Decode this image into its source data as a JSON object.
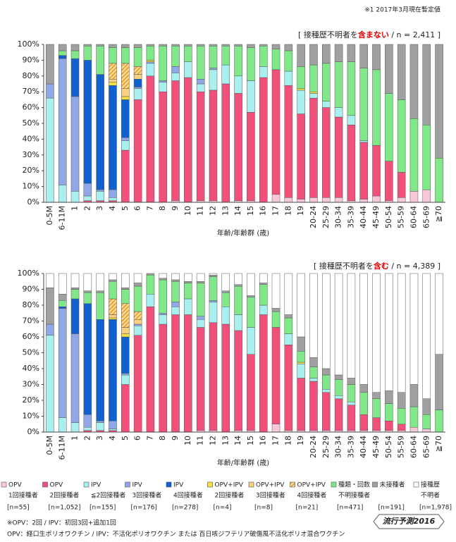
{
  "note": "※1  2017年3月現在暫定値",
  "chart_data": [
    {
      "type": "bar",
      "stacked": true,
      "title_parts": [
        "[ 接種歴不明者を",
        "含まない",
        " / n = 2,411 ]"
      ],
      "xlabel": "年齢/年齢群 (歳)",
      "categories": [
        "0-5M",
        "6-11M",
        "1",
        "2",
        "3",
        "4",
        "5",
        "6",
        "7",
        "8",
        "9",
        "10",
        "11",
        "12",
        "13",
        "14",
        "15",
        "16",
        "17",
        "18",
        "19",
        "20-24",
        "25-29",
        "30-34",
        "35-39",
        "40-44",
        "45-49",
        "50-54",
        "55-59",
        "60-64",
        "65-69",
        "≧70"
      ],
      "ylim": [
        0,
        100
      ],
      "yticks": [
        {
          "value": 0,
          "label": "0%"
        },
        {
          "value": 10,
          "label": "10%"
        },
        {
          "value": 20,
          "label": "20%"
        },
        {
          "value": 30,
          "label": "30%"
        },
        {
          "value": 40,
          "label": "40%"
        },
        {
          "value": 50,
          "label": "50%"
        },
        {
          "value": 60,
          "label": "60%"
        },
        {
          "value": 70,
          "label": "70%"
        },
        {
          "value": 80,
          "label": "80%"
        },
        {
          "value": 90,
          "label": "90%"
        },
        {
          "value": 100,
          "label": "100%"
        }
      ],
      "series": [
        {
          "name": "OPV",
          "detail": "1回接種者",
          "n": "[n=55]",
          "color": "#f8c8d8",
          "values": [
            0,
            0,
            0,
            0,
            0,
            0,
            0,
            0,
            0,
            0,
            1,
            0,
            1,
            1,
            0,
            1,
            1,
            0,
            5,
            3,
            2,
            3,
            3,
            3,
            1,
            2,
            4,
            1,
            3,
            7,
            8,
            0
          ]
        },
        {
          "name": "OPV",
          "detail": "2回接種者",
          "n": "[n=1,052]",
          "color": "#f0507a",
          "values": [
            0,
            0,
            0,
            1,
            1,
            1,
            33,
            65,
            80,
            70,
            76,
            79,
            69,
            70,
            75,
            68,
            56,
            79,
            79,
            71,
            54,
            63,
            57,
            51,
            48,
            36,
            32,
            25,
            16,
            0,
            0,
            0
          ]
        },
        {
          "name": "IPV",
          "detail": "≦2回接種者",
          "n": "[n=155]",
          "color": "#a8f0f0",
          "values": [
            66,
            11,
            7,
            3,
            6,
            2,
            6,
            7,
            8,
            6,
            5,
            10,
            5,
            13,
            12,
            11,
            20,
            7,
            0,
            9,
            15,
            3,
            4,
            6,
            6,
            1,
            0,
            0,
            0,
            0,
            0,
            0
          ]
        },
        {
          "name": "IPV",
          "detail": "3回接種者",
          "n": "[n=176]",
          "color": "#90a8e8",
          "values": [
            9,
            80,
            60,
            8,
            1,
            5,
            2,
            1,
            1,
            1,
            4,
            0,
            3,
            1,
            0,
            0,
            0,
            0,
            0,
            0,
            0,
            0,
            0,
            0,
            0,
            0,
            0,
            0,
            0,
            0,
            0,
            0
          ]
        },
        {
          "name": "IPV",
          "detail": "4回接種者",
          "n": "[n=278]",
          "color": "#1060d0",
          "values": [
            0,
            2,
            24,
            78,
            73,
            66,
            24,
            5,
            0,
            0,
            0,
            0,
            0,
            0,
            0,
            0,
            0,
            0,
            0,
            0,
            0,
            0,
            0,
            0,
            0,
            0,
            0,
            0,
            0,
            0,
            0,
            0
          ]
        },
        {
          "name": "OPV+IPV",
          "detail": "2回接種者",
          "n": "[n=4]",
          "color": "#f8e040",
          "values": [
            0,
            0,
            0,
            0,
            0,
            2,
            2,
            0,
            1,
            0,
            0,
            0,
            0,
            0,
            0,
            0,
            0,
            0,
            0,
            0,
            1,
            1,
            0,
            0,
            0,
            0,
            0,
            0,
            0,
            0,
            0,
            0
          ]
        },
        {
          "name": "OPV+IPV",
          "detail": "3回接種者",
          "n": "[n=8]",
          "color": "#f8d080",
          "values": [
            0,
            0,
            0,
            0,
            0,
            2,
            5,
            3,
            0,
            0,
            0,
            0,
            0,
            0,
            0,
            0,
            0,
            0,
            0,
            0,
            0,
            0,
            0,
            0,
            0,
            0,
            0,
            0,
            0,
            0,
            0,
            0
          ]
        },
        {
          "name": "OPV+IPV",
          "detail": "4回接種者",
          "n": "[n=21]",
          "color": "#f0a030",
          "hatch": true,
          "values": [
            0,
            0,
            0,
            0,
            0,
            10,
            16,
            5,
            0,
            0,
            0,
            0,
            0,
            0,
            0,
            0,
            0,
            0,
            0,
            0,
            0,
            0,
            0,
            0,
            0,
            0,
            0,
            0,
            0,
            0,
            0,
            0
          ]
        },
        {
          "name": "種類・回数",
          "detail": "不明接種者",
          "n": "[n=471]",
          "color": "#80e888",
          "values": [
            0,
            3,
            5,
            9,
            18,
            10,
            10,
            12,
            9,
            22,
            13,
            10,
            21,
            14,
            12,
            19,
            21,
            13,
            13,
            13,
            14,
            17,
            24,
            29,
            34,
            46,
            48,
            43,
            46,
            46,
            41,
            28
          ]
        },
        {
          "name": "未接種者",
          "n": "[n=191]",
          "color": "#a0a0a0",
          "values": [
            25,
            4,
            4,
            1,
            1,
            2,
            2,
            2,
            1,
            1,
            1,
            1,
            1,
            1,
            1,
            1,
            2,
            1,
            3,
            4,
            14,
            13,
            12,
            11,
            11,
            15,
            16,
            31,
            35,
            47,
            51,
            72
          ]
        },
        {
          "name": "接種歴",
          "detail": "不明者",
          "n": "[n=1,978]",
          "color": "#ffffff",
          "values": [
            0,
            0,
            0,
            0,
            0,
            0,
            0,
            0,
            0,
            0,
            0,
            0,
            0,
            0,
            0,
            0,
            0,
            0,
            0,
            0,
            0,
            0,
            0,
            0,
            0,
            0,
            0,
            0,
            0,
            0,
            0,
            0
          ]
        }
      ]
    },
    {
      "type": "bar",
      "stacked": true,
      "title_parts": [
        "[ 接種歴不明者を",
        "含む",
        " / n = 4,389 ]"
      ],
      "xlabel": "年齢/年齢群 (歳)",
      "categories": [
        "0-5M",
        "6-11M",
        "1",
        "2",
        "3",
        "4",
        "5",
        "6",
        "7",
        "8",
        "9",
        "10",
        "11",
        "12",
        "13",
        "14",
        "15",
        "16",
        "17",
        "18",
        "19",
        "20-24",
        "25-29",
        "30-34",
        "35-39",
        "40-44",
        "45-49",
        "50-54",
        "55-59",
        "60-64",
        "65-69",
        "≧70"
      ],
      "ylim": [
        0,
        100
      ],
      "yticks": [
        {
          "value": 0,
          "label": "0%"
        },
        {
          "value": 10,
          "label": "10%"
        },
        {
          "value": 20,
          "label": "20%"
        },
        {
          "value": 30,
          "label": "30%"
        },
        {
          "value": 40,
          "label": "40%"
        },
        {
          "value": 50,
          "label": "50%"
        },
        {
          "value": 60,
          "label": "60%"
        },
        {
          "value": 70,
          "label": "70%"
        },
        {
          "value": 80,
          "label": "80%"
        },
        {
          "value": 90,
          "label": "90%"
        },
        {
          "value": 100,
          "label": "100%"
        }
      ],
      "series": [
        {
          "values": [
            0,
            0,
            0,
            0,
            0,
            0,
            0,
            0,
            0,
            0,
            0,
            0,
            1,
            1,
            0,
            1,
            1,
            0,
            5,
            1,
            1,
            1,
            1,
            1,
            1,
            1,
            1,
            1,
            1,
            3,
            2,
            0
          ]
        },
        {
          "values": [
            0,
            0,
            0,
            1,
            1,
            1,
            30,
            61,
            79,
            68,
            74,
            74,
            65,
            68,
            68,
            63,
            48,
            74,
            61,
            54,
            33,
            31,
            24,
            20,
            16,
            10,
            8,
            6,
            4,
            0,
            0,
            0
          ]
        },
        {
          "values": [
            61,
            9,
            6,
            2,
            5,
            1,
            6,
            6,
            8,
            6,
            5,
            10,
            5,
            13,
            11,
            10,
            17,
            6,
            0,
            7,
            9,
            2,
            2,
            2,
            2,
            0,
            0,
            0,
            0,
            0,
            0,
            0
          ]
        },
        {
          "values": [
            7,
            69,
            56,
            8,
            1,
            5,
            1,
            1,
            0,
            1,
            3,
            0,
            2,
            1,
            0,
            0,
            0,
            0,
            0,
            0,
            0,
            0,
            0,
            0,
            0,
            0,
            0,
            0,
            0,
            0,
            0,
            0
          ]
        },
        {
          "values": [
            0,
            1,
            22,
            70,
            64,
            64,
            23,
            0,
            0,
            0,
            0,
            0,
            0,
            0,
            0,
            0,
            0,
            0,
            0,
            0,
            0,
            0,
            0,
            0,
            0,
            0,
            0,
            0,
            0,
            0,
            0,
            0
          ]
        },
        {
          "values": [
            0,
            0,
            0,
            0,
            0,
            1,
            2,
            0,
            0,
            0,
            0,
            0,
            0,
            0,
            0,
            0,
            0,
            0,
            0,
            0,
            1,
            0,
            0,
            0,
            0,
            0,
            0,
            0,
            0,
            0,
            0,
            0
          ]
        },
        {
          "values": [
            0,
            0,
            0,
            0,
            0,
            2,
            4,
            3,
            0,
            0,
            0,
            0,
            0,
            0,
            0,
            0,
            0,
            0,
            0,
            0,
            0,
            0,
            0,
            0,
            0,
            0,
            0,
            0,
            0,
            0,
            0,
            0
          ]
        },
        {
          "values": [
            0,
            0,
            0,
            0,
            0,
            10,
            15,
            5,
            0,
            0,
            0,
            0,
            0,
            0,
            0,
            0,
            0,
            0,
            0,
            0,
            0,
            0,
            0,
            0,
            0,
            0,
            0,
            0,
            0,
            0,
            0,
            0
          ]
        },
        {
          "values": [
            0,
            4,
            6,
            7,
            17,
            11,
            9,
            16,
            12,
            21,
            13,
            10,
            21,
            15,
            9,
            18,
            19,
            13,
            10,
            10,
            7,
            7,
            9,
            10,
            11,
            14,
            12,
            11,
            10,
            13,
            9,
            14
          ]
        },
        {
          "values": [
            23,
            4,
            1,
            1,
            1,
            1,
            1,
            2,
            1,
            1,
            1,
            1,
            1,
            1,
            1,
            1,
            1,
            1,
            2,
            2,
            9,
            6,
            4,
            3,
            4,
            5,
            4,
            8,
            10,
            14,
            10,
            35
          ]
        },
        {
          "values": [
            9,
            13,
            9,
            11,
            11,
            4,
            9,
            6,
            0,
            3,
            4,
            5,
            5,
            1,
            11,
            7,
            14,
            6,
            22,
            26,
            40,
            53,
            60,
            64,
            66,
            70,
            75,
            74,
            75,
            70,
            79,
            51
          ]
        }
      ]
    }
  ],
  "footnotes": [
    "※OPV：2回 / IPV：初回3回+追加1回",
    "OPV：経口生ポリオワクチン / IPV：不活化ポリオワクチン または 百日咳ジフテリア破傷風不活化ポリオ混合ワクチン"
  ],
  "logo": "流行予測2016"
}
